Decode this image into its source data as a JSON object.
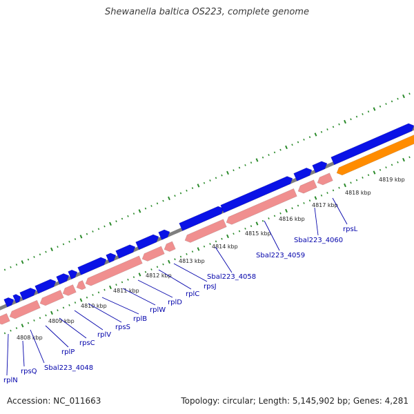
{
  "title": "Shewanella baltica OS223, complete genome",
  "footer": {
    "accession": "Accession: NC_011663",
    "summary": "Topology: circular; Length: 5,145,902 bp; Genes: 4,281"
  },
  "colors": {
    "backbone": "#7f7f7f",
    "forward_cds": "#0a12e6",
    "reverse_cds": "#f08f8f",
    "rna": "#ff8c00",
    "ticks": "#2a8a2a",
    "gene_label": "#0000aa"
  },
  "kbp_labels": [
    "4808 kbp",
    "4809 kbp",
    "4810 kbp",
    "4811 kbp",
    "4812 kbp",
    "4813 kbp",
    "4814 kbp",
    "4815 kbp",
    "4816 kbp",
    "4817 kbp",
    "4818 kbp",
    "4819 kbp"
  ],
  "gene_labels": [
    "rplN",
    "rpsQ",
    "Sbal223_4048",
    "rplP",
    "rpsC",
    "rplV",
    "rpsS",
    "rplB",
    "rplW",
    "rplD",
    "rplC",
    "rpsJ",
    "Sbal223_4058",
    "Sbal223_4059",
    "Sbal223_4060",
    "rpsL"
  ]
}
